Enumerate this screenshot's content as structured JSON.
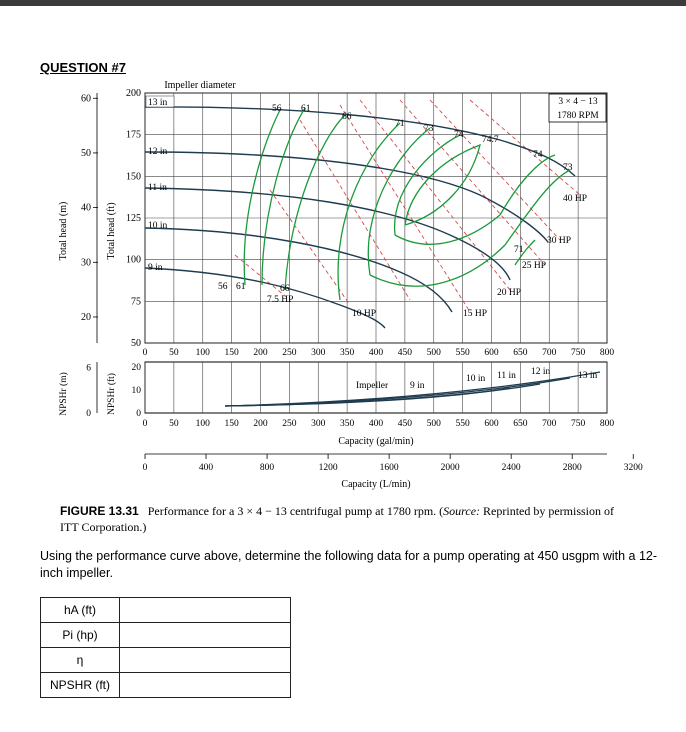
{
  "question_title": "QUESTION #7",
  "figure": {
    "impeller_diameter_label": "Impeller diameter",
    "model_box": [
      "3 × 4 − 13",
      "1780 RPM"
    ],
    "y_axis_m_label": "Total head (m)",
    "y_axis_ft_label": "Total head (ft)",
    "npsh_m_label": "NPSHr (m)",
    "npsh_ft_label": "NPSHr (ft)",
    "head_m_ticks": [
      "60",
      "50",
      "40",
      "30",
      "20"
    ],
    "head_ft_ticks": [
      "200",
      "175",
      "150",
      "125",
      "100",
      "75",
      "50"
    ],
    "npsh_m_ticks": [
      "6",
      "0"
    ],
    "npsh_ft_ticks": [
      "20",
      "10",
      "0"
    ],
    "gpm_ticks": [
      "0",
      "50",
      "100",
      "150",
      "200",
      "250",
      "300",
      "350",
      "400",
      "450",
      "500",
      "550",
      "600",
      "650",
      "700",
      "750",
      "800"
    ],
    "lpm_ticks": [
      "0",
      "400",
      "800",
      "1200",
      "1600",
      "2000",
      "2400",
      "2800",
      "3200"
    ],
    "x_axis_gpm_label": "Capacity (gal/min)",
    "x_axis_lpm_label": "Capacity (L/min)",
    "impeller_labels": [
      "13 in",
      "12 in",
      "11 in",
      "10 in",
      "9 in"
    ],
    "efficiency_labels": [
      "56",
      "61",
      "66",
      "71",
      "73",
      "74",
      "74.7",
      "74",
      "73",
      "71",
      "56",
      "61",
      "66"
    ],
    "power_labels": [
      "7.5 HP",
      "10 HP",
      "15 HP",
      "20 HP",
      "25 HP",
      "30 HP",
      "40 HP"
    ],
    "npsh_curve_labels": [
      "Impeller",
      "9 in",
      "10 in",
      "11 in",
      "12 in",
      "13 in"
    ],
    "caption_label": "FIGURE 13.31",
    "caption_text": "Performance for a 3 × 4 − 13 centrifugal pump at 1780 rpm. (",
    "caption_source_label": "Source:",
    "caption_source_text": "Reprinted by permission of ITT Corporation.)"
  },
  "prompt": "Using the performance curve above, determine the following data for a pump operating at 450 usgpm with a 12-inch impeller.",
  "answer_table": {
    "rows": [
      {
        "label": "hA (ft)",
        "value": ""
      },
      {
        "label": "Pi (hp)",
        "value": ""
      },
      {
        "label": "η",
        "value": ""
      },
      {
        "label": "NPSHR (ft)",
        "value": ""
      }
    ]
  },
  "colors": {
    "efficiency": "#1a9a3a",
    "impeller": "#1f3c4f",
    "power": "#d24a4a"
  }
}
